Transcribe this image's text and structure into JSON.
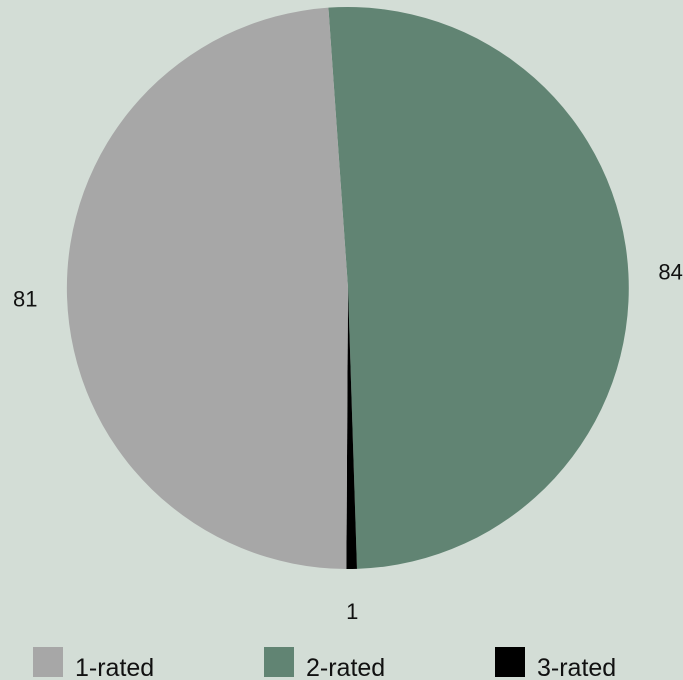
{
  "chart_data": {
    "type": "pie",
    "title": "",
    "categories": [
      "1-rated",
      "2-rated",
      "3-rated"
    ],
    "values": [
      81,
      84,
      1
    ],
    "colors": [
      "#a7a7a7",
      "#618473",
      "#000000"
    ],
    "legend_position": "bottom",
    "data_labels": [
      "81",
      "84",
      "1"
    ]
  }
}
